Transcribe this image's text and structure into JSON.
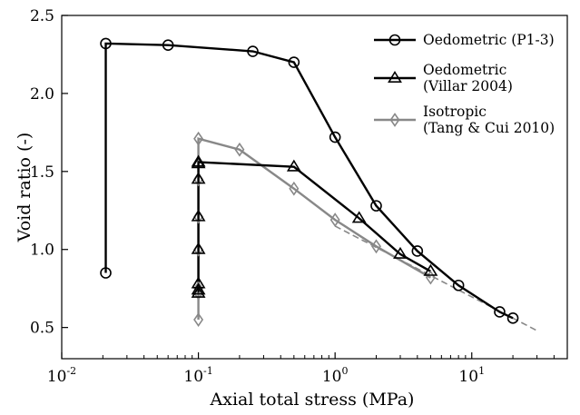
{
  "chart_data": {
    "type": "line",
    "xlabel": "Axial total stress (MPa)",
    "ylabel": "Void ratio (-)",
    "xscale": "log",
    "xlim": [
      0.01,
      50
    ],
    "ylim": [
      0.3,
      2.5
    ],
    "x_ticks": [
      {
        "value": 0.01,
        "base": "10",
        "exp": "-2"
      },
      {
        "value": 0.1,
        "base": "10",
        "exp": "-1"
      },
      {
        "value": 1,
        "base": "10",
        "exp": "0"
      },
      {
        "value": 10,
        "base": "10",
        "exp": "1"
      }
    ],
    "y_ticks": [
      {
        "value": 0.5,
        "label": "0.5"
      },
      {
        "value": 1.0,
        "label": "1.0"
      },
      {
        "value": 1.5,
        "label": "1.5"
      },
      {
        "value": 2.0,
        "label": "2.0"
      },
      {
        "value": 2.5,
        "label": "2.5"
      }
    ],
    "grid": false,
    "legend_position": "top-right",
    "series": [
      {
        "name": "Oedometric (P1-3)",
        "legend_lines": [
          "Oedometric (P1-3)"
        ],
        "color": "#000000",
        "marker": "circle",
        "x": [
          0.021,
          0.021,
          0.06,
          0.25,
          0.5,
          1.0,
          2.0,
          4.0,
          8.0,
          16.0,
          20.0
        ],
        "y": [
          0.85,
          2.32,
          2.31,
          2.27,
          2.2,
          1.72,
          1.28,
          0.99,
          0.77,
          0.6,
          0.56
        ]
      },
      {
        "name": "Oedometric (Villar 2004)",
        "legend_lines": [
          "Oedometric",
          " (Villar 2004)"
        ],
        "color": "#000000",
        "marker": "triangle",
        "x": [
          0.1,
          0.1,
          0.1,
          0.1,
          0.1,
          0.1,
          0.1,
          0.1,
          0.5,
          1.5,
          3.0,
          5.0
        ],
        "y": [
          0.72,
          0.74,
          0.78,
          1.0,
          1.21,
          1.45,
          1.55,
          1.56,
          1.53,
          1.2,
          0.97,
          0.86
        ]
      },
      {
        "name": "Isotropic (Tang & Cui 2010)",
        "legend_lines": [
          "Isotropic",
          "(Tang & Cui 2010)"
        ],
        "color": "#888888",
        "marker": "diamond",
        "x": [
          0.1,
          0.1,
          0.1,
          0.1,
          0.1,
          0.1,
          0.1,
          0.2,
          0.5,
          1.0,
          2.0,
          5.0
        ],
        "y": [
          0.55,
          0.72,
          0.75,
          1.0,
          1.21,
          1.45,
          1.71,
          1.64,
          1.39,
          1.19,
          1.02,
          0.82
        ]
      }
    ],
    "reference_line": {
      "style": "dashed",
      "color": "#888888",
      "x": [
        1.0,
        30.0
      ],
      "y": [
        1.15,
        0.48
      ]
    }
  }
}
